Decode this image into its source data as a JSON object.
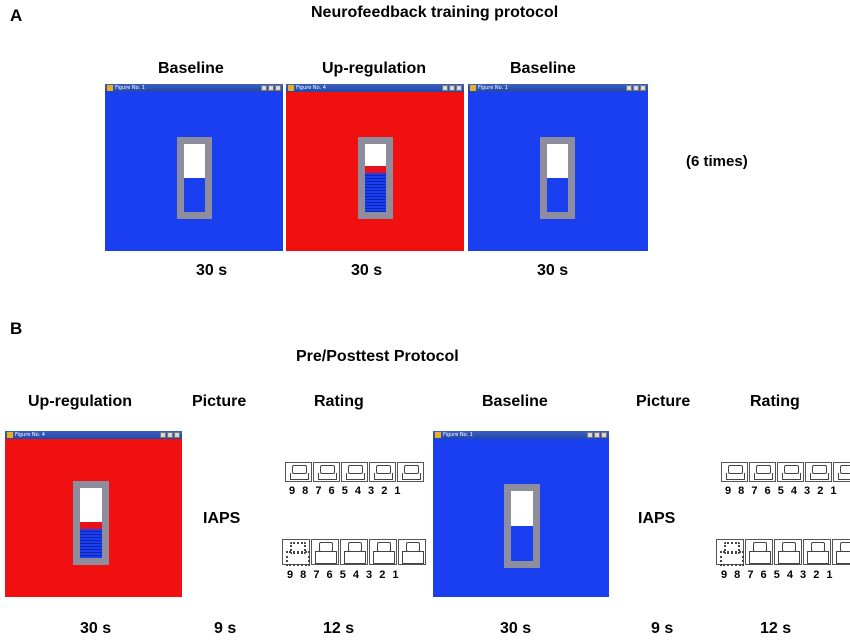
{
  "panel_a": {
    "letter": "A",
    "title": "Neurofeedback training protocol",
    "conditions": [
      {
        "label": "Baseline",
        "duration": "30 s",
        "color": "#1a3ff0"
      },
      {
        "label": "Up-regulation",
        "duration": "30 s",
        "color": "#f01010"
      },
      {
        "label": "Baseline",
        "duration": "30 s",
        "color": "#1a3ff0"
      }
    ],
    "repeat_note": "(6 times)",
    "window_titles": [
      "Figure No. 1",
      "Figure No. 4",
      "Figure No. 1"
    ]
  },
  "panel_b": {
    "letter": "B",
    "title": "Pre/Posttest Protocol",
    "steps": [
      {
        "label": "Up-regulation",
        "duration": "30 s"
      },
      {
        "label": "Picture",
        "duration": "9 s",
        "content": "IAPS"
      },
      {
        "label": "Rating",
        "duration": "12 s",
        "scale": "9 8 7 6 5 4 3 2 1"
      },
      {
        "label": "Baseline",
        "duration": "30 s"
      },
      {
        "label": "Picture",
        "duration": "9 s",
        "content": "IAPS"
      },
      {
        "label": "Rating",
        "duration": "12 s",
        "scale": "9 8 7 6 5 4 3 2 1"
      }
    ],
    "window_titles": [
      "Figure No. 4",
      "Figure No. 1"
    ]
  }
}
